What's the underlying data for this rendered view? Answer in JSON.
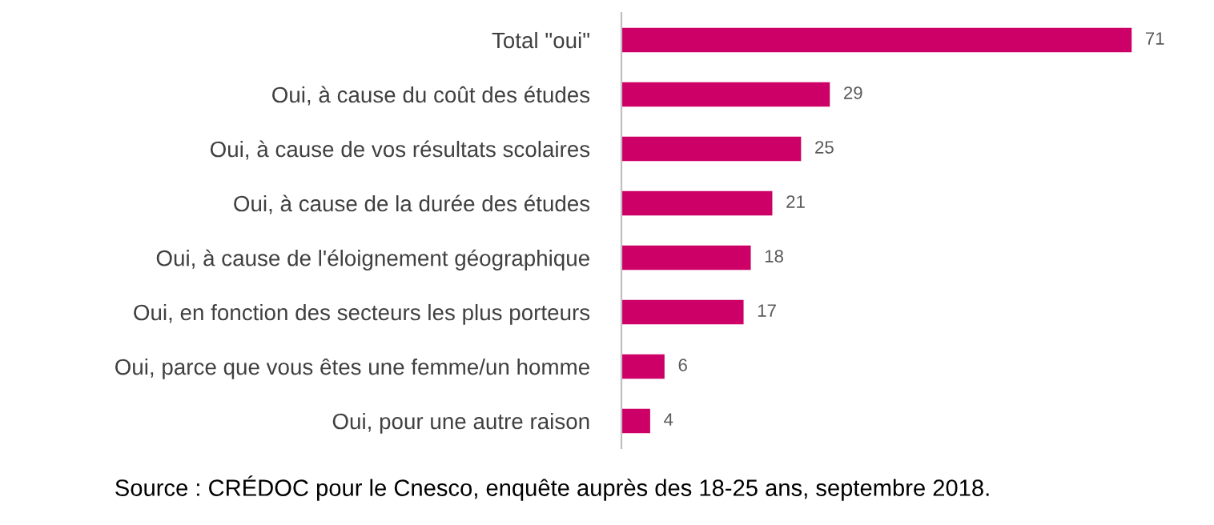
{
  "chart_data": {
    "type": "bar",
    "orientation": "horizontal",
    "categories": [
      "Total \"oui\"",
      "Oui, à cause du coût des études",
      "Oui, à cause de vos résultats scolaires",
      "Oui, à cause de la durée des études",
      "Oui, à cause de l'éloignement géographique",
      "Oui, en fonction des secteurs les plus porteurs",
      "Oui, parce que vous êtes une femme/un homme",
      "Oui, pour une autre raison"
    ],
    "values": [
      71,
      29,
      25,
      21,
      18,
      17,
      6,
      4
    ],
    "color": "#cc0066",
    "data_labels": true,
    "grid": false,
    "legend": false,
    "annotations": [
      "Source : CRÉDOC pour le Cnesco, enquête auprès des 18-25 ans, septembre 2018."
    ]
  }
}
